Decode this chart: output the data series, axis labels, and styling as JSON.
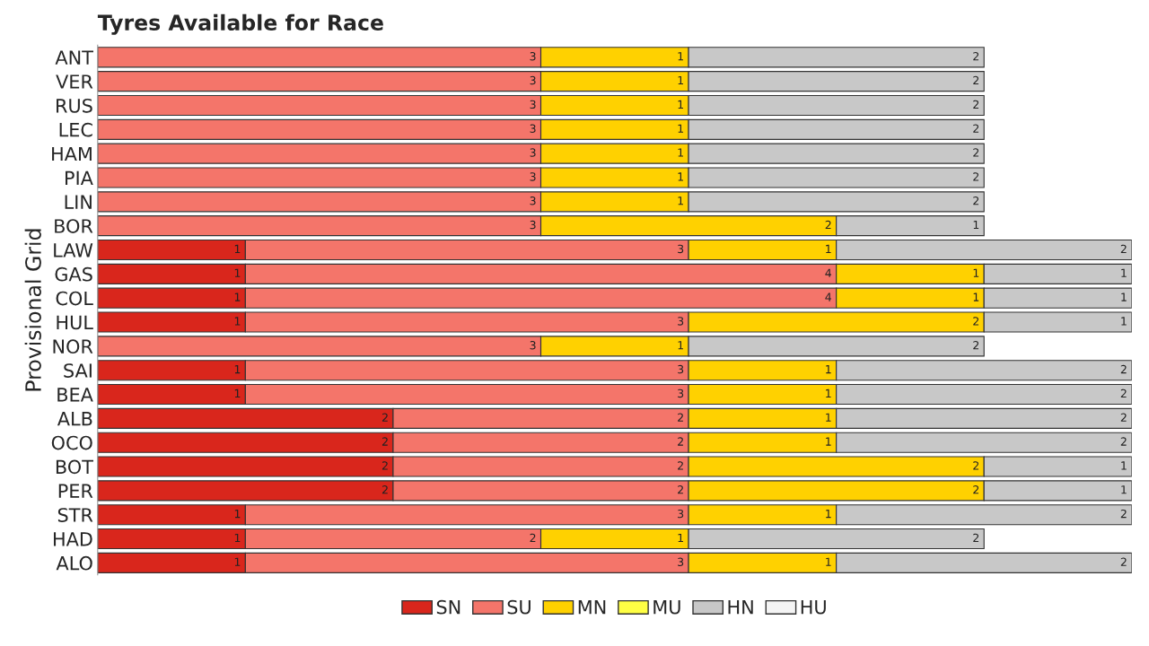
{
  "chart_data": {
    "type": "bar",
    "orientation": "horizontal",
    "stacked": true,
    "data_labels": true,
    "title": "Tyres Available for Race",
    "ylabel": "Provisional Grid",
    "tick_labels": "y",
    "grid": false,
    "legend": "bottom",
    "xlim": [
      0,
      7
    ],
    "categories": [
      "ANT",
      "VER",
      "RUS",
      "LEC",
      "HAM",
      "PIA",
      "LIN",
      "BOR",
      "LAW",
      "GAS",
      "COL",
      "HUL",
      "NOR",
      "SAI",
      "BEA",
      "ALB",
      "OCO",
      "BOT",
      "PER",
      "STR",
      "HAD",
      "ALO"
    ],
    "series": [
      {
        "name": "SN",
        "color": "#d9261c",
        "values": [
          null,
          null,
          null,
          null,
          null,
          null,
          null,
          null,
          1,
          1,
          1,
          1,
          null,
          1,
          1,
          2,
          2,
          2,
          2,
          1,
          1,
          1
        ]
      },
      {
        "name": "SU",
        "color": "#f4756a",
        "values": [
          3,
          3,
          3,
          3,
          3,
          3,
          3,
          3,
          3,
          4,
          4,
          3,
          3,
          3,
          3,
          2,
          2,
          2,
          2,
          3,
          2,
          3
        ]
      },
      {
        "name": "MN",
        "color": "#ffd100",
        "values": [
          1,
          1,
          1,
          1,
          1,
          1,
          1,
          2,
          1,
          1,
          1,
          2,
          1,
          1,
          1,
          1,
          1,
          2,
          2,
          1,
          1,
          1
        ]
      },
      {
        "name": "MU",
        "color": "#ffff44",
        "values": [
          null,
          null,
          null,
          null,
          null,
          null,
          null,
          null,
          null,
          null,
          null,
          null,
          null,
          null,
          null,
          null,
          null,
          null,
          null,
          null,
          null,
          null
        ]
      },
      {
        "name": "HN",
        "color": "#c8c8c8",
        "values": [
          2,
          2,
          2,
          2,
          2,
          2,
          2,
          1,
          2,
          1,
          1,
          1,
          2,
          2,
          2,
          2,
          2,
          1,
          1,
          2,
          2,
          2
        ]
      },
      {
        "name": "HU",
        "color": "#f4f4f4",
        "values": [
          null,
          null,
          null,
          null,
          null,
          null,
          null,
          null,
          null,
          null,
          null,
          null,
          null,
          null,
          null,
          null,
          null,
          null,
          null,
          null,
          null,
          null
        ]
      }
    ]
  }
}
